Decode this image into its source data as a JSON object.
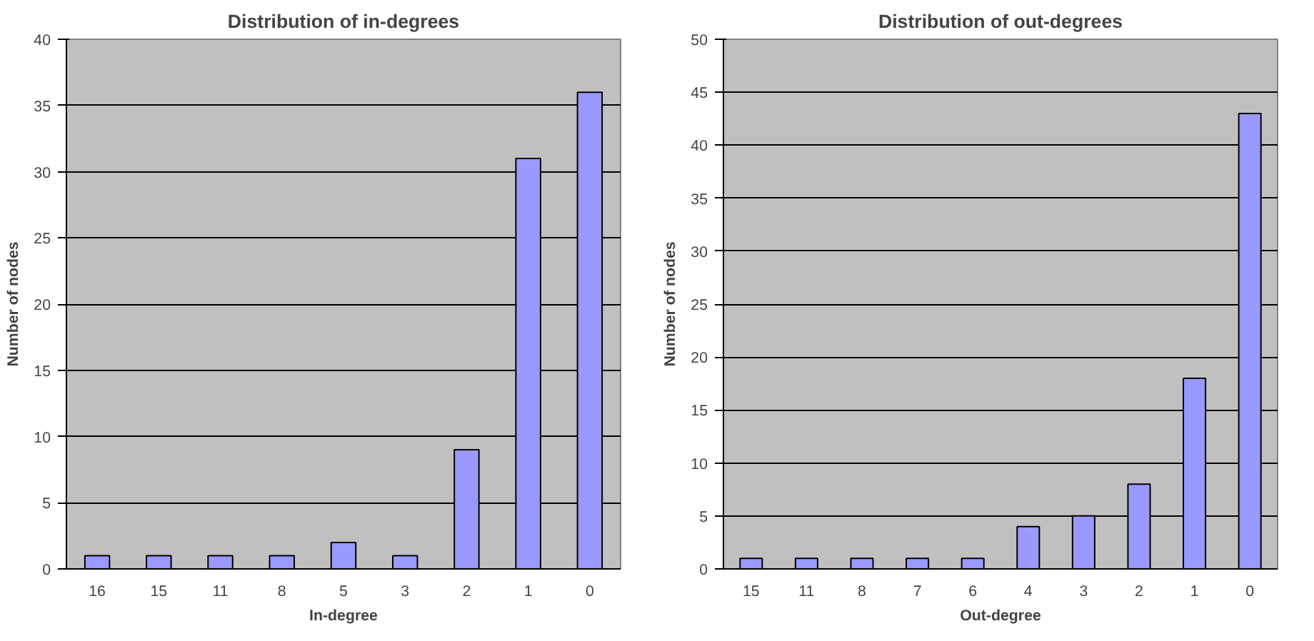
{
  "chart_data": [
    {
      "type": "bar",
      "title": "Distribution of in-degrees",
      "xlabel": "In-degree",
      "ylabel": "Number of nodes",
      "categories": [
        "16",
        "15",
        "11",
        "8",
        "5",
        "3",
        "2",
        "1",
        "0"
      ],
      "values": [
        1,
        1,
        1,
        1,
        2,
        1,
        9,
        31,
        36
      ],
      "color": "#9999ff",
      "ylim": [
        0,
        40
      ],
      "yticks": [
        0,
        5,
        10,
        15,
        20,
        25,
        30,
        35,
        40
      ],
      "grid": "y"
    },
    {
      "type": "bar",
      "title": "Distribution of out-degrees",
      "xlabel": "Out-degree",
      "ylabel": "Number of nodes",
      "categories": [
        "15",
        "11",
        "8",
        "7",
        "6",
        "4",
        "3",
        "2",
        "1",
        "0"
      ],
      "values": [
        1,
        1,
        1,
        1,
        1,
        4,
        5,
        8,
        18,
        43
      ],
      "color": "#9999ff",
      "ylim": [
        0,
        50
      ],
      "yticks": [
        0,
        5,
        10,
        15,
        20,
        25,
        30,
        35,
        40,
        45,
        50
      ],
      "grid": "y"
    }
  ]
}
